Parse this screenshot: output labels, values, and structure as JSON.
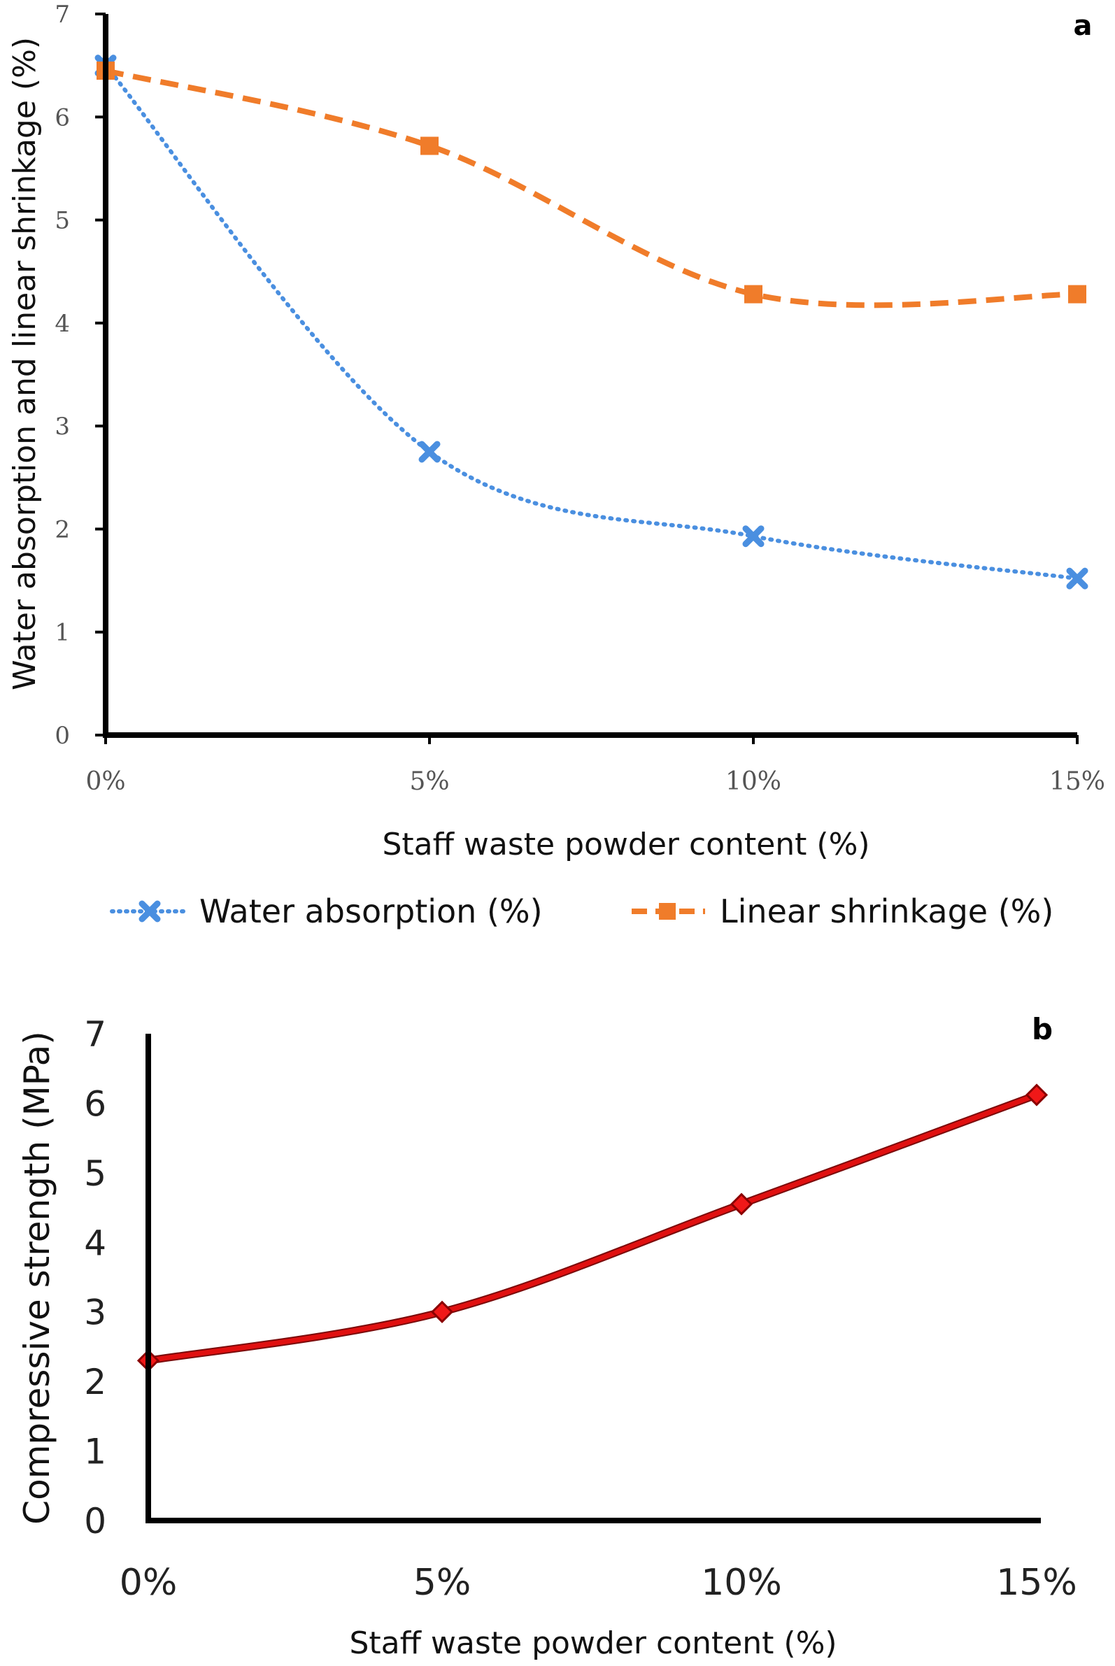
{
  "chart_data": [
    {
      "type": "line",
      "panel_label": "a",
      "categories": [
        "0%",
        "5%",
        "10%",
        "15%"
      ],
      "series": [
        {
          "name": "Water absorption (%)",
          "values": [
            6.5,
            2.75,
            1.93,
            1.52
          ],
          "color": "#4a8fe0",
          "line_style": "dotted",
          "marker": "cross"
        },
        {
          "name": "Linear shrinkage (%)",
          "values": [
            6.45,
            5.72,
            4.28,
            4.28
          ],
          "color": "#f07c2a",
          "line_style": "dashed",
          "marker": "square"
        }
      ],
      "xlabel": "Staff waste powder content (%)",
      "ylabel": "Water absorption and linear shrinkage (%)",
      "ylim": [
        0,
        7
      ],
      "yticks": [
        "0",
        "1",
        "2",
        "3",
        "4",
        "5",
        "6",
        "7"
      ],
      "grid": false,
      "legend_position": "bottom"
    },
    {
      "type": "line",
      "panel_label": "b",
      "categories": [
        "0%",
        "5%",
        "10%",
        "15%"
      ],
      "series": [
        {
          "values": [
            2.3,
            3.0,
            4.55,
            6.12
          ],
          "color": "#e01010",
          "line_style": "solid",
          "marker": "diamond"
        }
      ],
      "xlabel": "Staff waste powder content (%)",
      "ylabel": "Compressive strength (MPa)",
      "ylim": [
        0,
        7
      ],
      "yticks": [
        "0",
        "1",
        "2",
        "3",
        "4",
        "5",
        "6",
        "7"
      ],
      "grid": false,
      "legend_position": "none"
    }
  ]
}
